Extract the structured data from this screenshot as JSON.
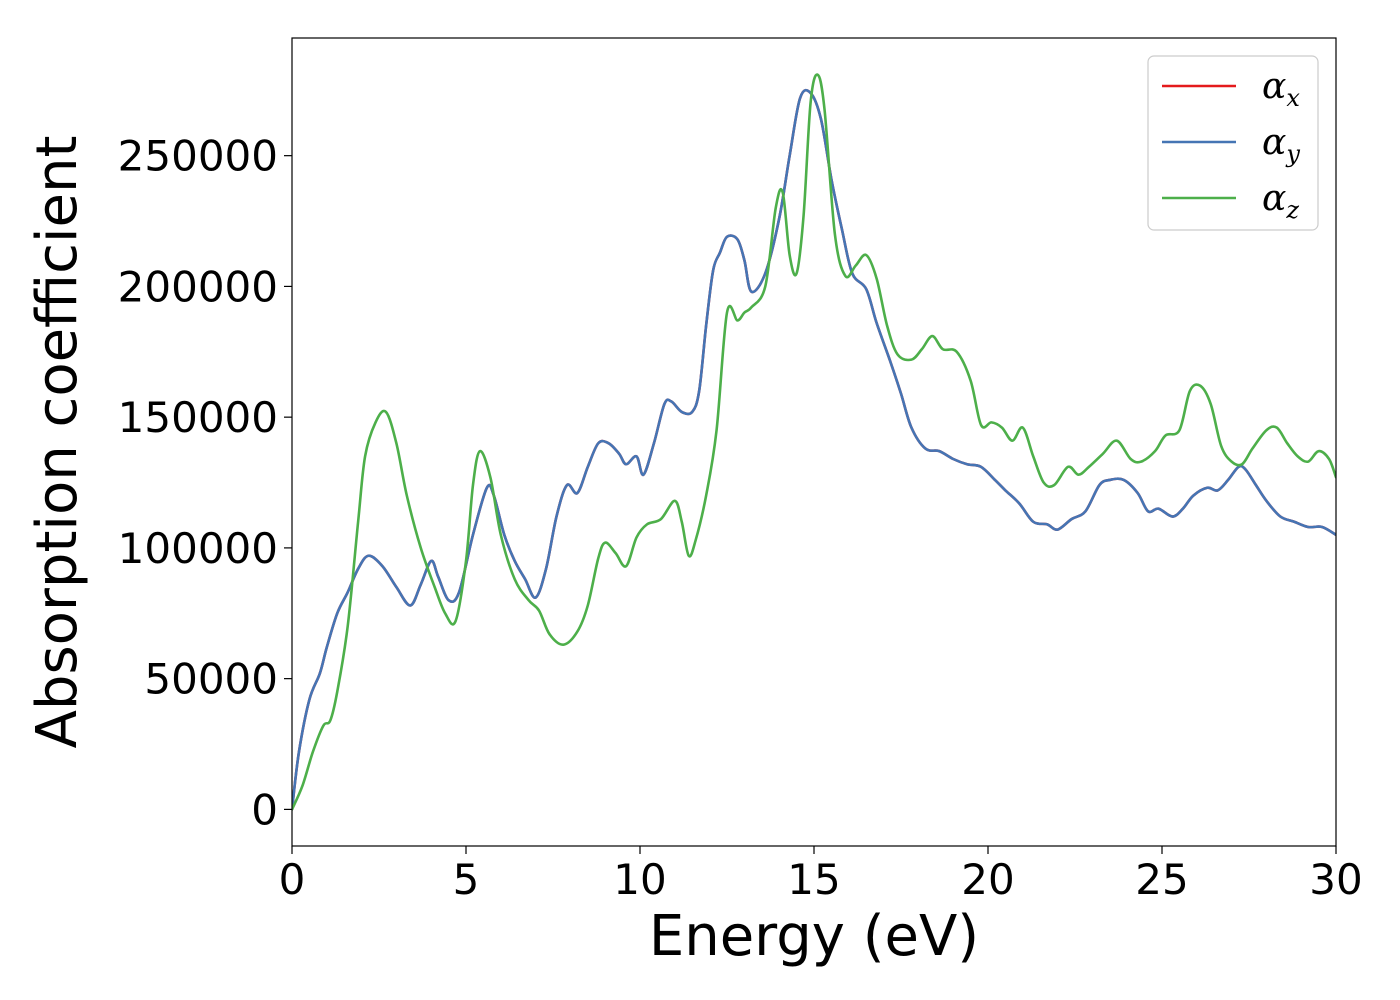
{
  "chart_data": {
    "type": "line",
    "xlabel": "Energy (eV)",
    "ylabel": "Absorption coefficient",
    "xlim": [
      0,
      30
    ],
    "ylim": [
      -14000,
      295000
    ],
    "xticks": [
      0,
      5,
      10,
      15,
      20,
      25,
      30
    ],
    "xtick_labels": [
      "0",
      "5",
      "10",
      "15",
      "20",
      "25",
      "30"
    ],
    "yticks": [
      0,
      50000,
      100000,
      150000,
      200000,
      250000
    ],
    "ytick_labels": [
      "0",
      "50000",
      "100000",
      "150000",
      "200000",
      "250000"
    ],
    "grid": false,
    "legend_position": "top-right",
    "series": [
      {
        "name": "αx",
        "legend_symbol": "α",
        "legend_subscript": "x",
        "color": "#e41a1c",
        "x": [
          0,
          0.2,
          0.5,
          0.8,
          1.0,
          1.3,
          1.6,
          1.9,
          2.2,
          2.6,
          3.0,
          3.4,
          3.7,
          4.0,
          4.2,
          4.5,
          4.8,
          5.2,
          5.6,
          5.8,
          6.1,
          6.4,
          6.7,
          7.0,
          7.3,
          7.6,
          7.9,
          8.2,
          8.5,
          8.8,
          9.1,
          9.4,
          9.6,
          9.9,
          10.1,
          10.4,
          10.7,
          10.9,
          11.2,
          11.5,
          11.7,
          11.9,
          12.1,
          12.3,
          12.5,
          12.8,
          13.0,
          13.2,
          13.6,
          14.0,
          14.3,
          14.6,
          14.9,
          15.2,
          15.5,
          15.8,
          16.1,
          16.5,
          16.8,
          17.2,
          17.5,
          17.8,
          18.2,
          18.6,
          19.0,
          19.4,
          19.8,
          20.2,
          20.5,
          20.9,
          21.3,
          21.7,
          22.0,
          22.4,
          22.8,
          23.2,
          23.5,
          23.9,
          24.3,
          24.6,
          24.9,
          25.3,
          25.6,
          25.9,
          26.3,
          26.6,
          26.9,
          27.2,
          27.4,
          27.7,
          28.0,
          28.4,
          28.8,
          29.2,
          29.6,
          30.0
        ],
        "y": [
          0,
          22000,
          42000,
          52000,
          62000,
          75000,
          83000,
          92000,
          97000,
          93000,
          85000,
          78000,
          86000,
          95000,
          89000,
          80000,
          83000,
          105000,
          123000,
          120000,
          105000,
          95000,
          88000,
          81000,
          92000,
          112000,
          124000,
          121000,
          131000,
          140000,
          140000,
          136000,
          132000,
          135000,
          128000,
          140000,
          155000,
          156000,
          152000,
          152000,
          160000,
          185000,
          206000,
          213000,
          219000,
          218000,
          210000,
          198000,
          205000,
          226000,
          250000,
          272000,
          274000,
          264000,
          241000,
          222000,
          205000,
          199000,
          186000,
          171000,
          159000,
          146000,
          138000,
          137000,
          134000,
          132000,
          131000,
          126000,
          122000,
          117000,
          110000,
          109000,
          107000,
          111000,
          114000,
          124000,
          126000,
          126000,
          121000,
          114000,
          115000,
          112000,
          115000,
          120000,
          123000,
          122000,
          126000,
          131000,
          130000,
          124000,
          118000,
          112000,
          110000,
          108000,
          108000,
          105000
        ]
      },
      {
        "name": "αy",
        "legend_symbol": "α",
        "legend_subscript": "y",
        "color": "#4575b4",
        "x": [
          0,
          0.2,
          0.5,
          0.8,
          1.0,
          1.3,
          1.6,
          1.9,
          2.2,
          2.6,
          3.0,
          3.4,
          3.7,
          4.0,
          4.2,
          4.5,
          4.8,
          5.2,
          5.6,
          5.8,
          6.1,
          6.4,
          6.7,
          7.0,
          7.3,
          7.6,
          7.9,
          8.2,
          8.5,
          8.8,
          9.1,
          9.4,
          9.6,
          9.9,
          10.1,
          10.4,
          10.7,
          10.9,
          11.2,
          11.5,
          11.7,
          11.9,
          12.1,
          12.3,
          12.5,
          12.8,
          13.0,
          13.2,
          13.6,
          14.0,
          14.3,
          14.6,
          14.9,
          15.2,
          15.5,
          15.8,
          16.1,
          16.5,
          16.8,
          17.2,
          17.5,
          17.8,
          18.2,
          18.6,
          19.0,
          19.4,
          19.8,
          20.2,
          20.5,
          20.9,
          21.3,
          21.7,
          22.0,
          22.4,
          22.8,
          23.2,
          23.5,
          23.9,
          24.3,
          24.6,
          24.9,
          25.3,
          25.6,
          25.9,
          26.3,
          26.6,
          26.9,
          27.2,
          27.4,
          27.7,
          28.0,
          28.4,
          28.8,
          29.2,
          29.6,
          30.0
        ],
        "y": [
          0,
          22000,
          42000,
          52000,
          62000,
          75000,
          83000,
          92000,
          97000,
          93000,
          85000,
          78000,
          86000,
          95000,
          89000,
          80000,
          83000,
          105000,
          123000,
          120000,
          105000,
          95000,
          88000,
          81000,
          92000,
          112000,
          124000,
          121000,
          131000,
          140000,
          140000,
          136000,
          132000,
          135000,
          128000,
          140000,
          155000,
          156000,
          152000,
          152000,
          160000,
          185000,
          206000,
          213000,
          219000,
          218000,
          210000,
          198000,
          205000,
          226000,
          250000,
          272000,
          274000,
          264000,
          241000,
          222000,
          205000,
          199000,
          186000,
          171000,
          159000,
          146000,
          138000,
          137000,
          134000,
          132000,
          131000,
          126000,
          122000,
          117000,
          110000,
          109000,
          107000,
          111000,
          114000,
          124000,
          126000,
          126000,
          121000,
          114000,
          115000,
          112000,
          115000,
          120000,
          123000,
          122000,
          126000,
          131000,
          130000,
          124000,
          118000,
          112000,
          110000,
          108000,
          108000,
          105000
        ]
      },
      {
        "name": "αz",
        "legend_symbol": "α",
        "legend_subscript": "z",
        "color": "#4daf4a",
        "x": [
          0,
          0.3,
          0.6,
          0.9,
          1.1,
          1.3,
          1.6,
          1.9,
          2.1,
          2.4,
          2.7,
          3.0,
          3.3,
          3.7,
          4.1,
          4.4,
          4.7,
          5.0,
          5.2,
          5.4,
          5.7,
          6.0,
          6.4,
          6.8,
          7.1,
          7.4,
          7.8,
          8.2,
          8.5,
          8.8,
          9.0,
          9.3,
          9.6,
          9.9,
          10.2,
          10.6,
          11.0,
          11.2,
          11.4,
          11.6,
          11.9,
          12.2,
          12.5,
          12.8,
          13.0,
          13.2,
          13.6,
          13.9,
          14.1,
          14.3,
          14.5,
          14.7,
          14.9,
          15.1,
          15.3,
          15.6,
          15.9,
          16.2,
          16.5,
          16.8,
          17.1,
          17.4,
          17.8,
          18.1,
          18.4,
          18.7,
          19.1,
          19.5,
          19.8,
          20.1,
          20.4,
          20.7,
          21.0,
          21.3,
          21.6,
          21.9,
          22.3,
          22.6,
          22.9,
          23.3,
          23.7,
          24.1,
          24.4,
          24.8,
          25.1,
          25.5,
          25.8,
          26.1,
          26.4,
          26.7,
          27.0,
          27.3,
          27.6,
          28.0,
          28.3,
          28.6,
          28.9,
          29.2,
          29.5,
          29.8,
          30.0
        ],
        "y": [
          0,
          9000,
          22000,
          32000,
          34000,
          45000,
          70000,
          110000,
          135000,
          148000,
          152000,
          140000,
          120000,
          100000,
          85000,
          75000,
          72000,
          95000,
          124000,
          137000,
          127000,
          105000,
          88000,
          80000,
          76000,
          67000,
          63000,
          68000,
          78000,
          96000,
          102000,
          98000,
          93000,
          104000,
          109000,
          111000,
          118000,
          110000,
          97000,
          103000,
          120000,
          145000,
          190000,
          187000,
          190000,
          192000,
          200000,
          230000,
          236000,
          212000,
          205000,
          227000,
          270000,
          281000,
          268000,
          220000,
          204000,
          208000,
          212000,
          203000,
          185000,
          174000,
          172000,
          176000,
          181000,
          176000,
          175000,
          164000,
          147000,
          148000,
          146000,
          141000,
          146000,
          135000,
          125000,
          124000,
          131000,
          128000,
          131000,
          136000,
          141000,
          134000,
          133000,
          137000,
          143000,
          145000,
          160000,
          162000,
          155000,
          139000,
          133000,
          132000,
          138000,
          145000,
          146000,
          140000,
          135000,
          133000,
          137000,
          134000,
          127000
        ]
      }
    ]
  }
}
